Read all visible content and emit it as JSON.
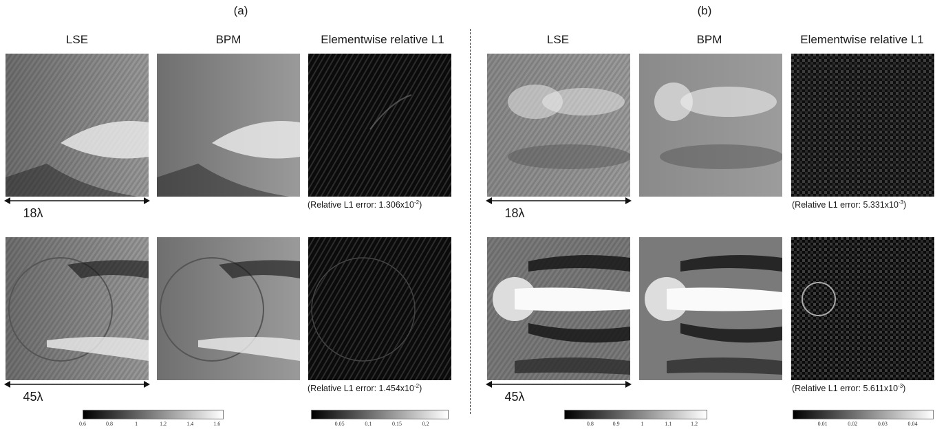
{
  "panels": [
    {
      "label": "(a)",
      "columns": [
        "LSE",
        "BPM",
        "Elementwise relative L1"
      ],
      "rows": [
        {
          "scale": "18λ",
          "error_prefix": "(Relative L1 error: 1.306x10",
          "error_exp": "-2",
          "error_suffix": ")"
        },
        {
          "scale": "45λ",
          "error_prefix": "(Relative L1 error: 1.454x10",
          "error_exp": "-2",
          "error_suffix": ")"
        }
      ],
      "colorbars": [
        {
          "min": 0.6,
          "max": 1.65,
          "ticks": [
            "0.6",
            "0.8",
            "1",
            "1.2",
            "1.4",
            "1.6"
          ],
          "tick_values": [
            0.6,
            0.8,
            1.0,
            1.2,
            1.4,
            1.6
          ]
        },
        {
          "min": 0.0,
          "max": 0.24,
          "ticks": [
            "0.05",
            "0.1",
            "0.15",
            "0.2"
          ],
          "tick_values": [
            0.05,
            0.1,
            0.15,
            0.2
          ]
        }
      ]
    },
    {
      "label": "(b)",
      "columns": [
        "LSE",
        "BPM",
        "Elementwise relative L1"
      ],
      "rows": [
        {
          "scale": "18λ",
          "error_prefix": "(Relative L1 error: 5.331x10",
          "error_exp": "-3",
          "error_suffix": ")"
        },
        {
          "scale": "45λ",
          "error_prefix": "(Relative L1 error: 5.611x10",
          "error_exp": "-3",
          "error_suffix": ")"
        }
      ],
      "colorbars": [
        {
          "min": 0.7,
          "max": 1.25,
          "ticks": [
            "0.8",
            "0.9",
            "1",
            "1.1",
            "1.2"
          ],
          "tick_values": [
            0.8,
            0.9,
            1.0,
            1.1,
            1.2
          ]
        },
        {
          "min": 0.0,
          "max": 0.047,
          "ticks": [
            "0.01",
            "0.02",
            "0.03",
            "0.04"
          ],
          "tick_values": [
            0.01,
            0.02,
            0.03,
            0.04
          ]
        }
      ]
    }
  ]
}
